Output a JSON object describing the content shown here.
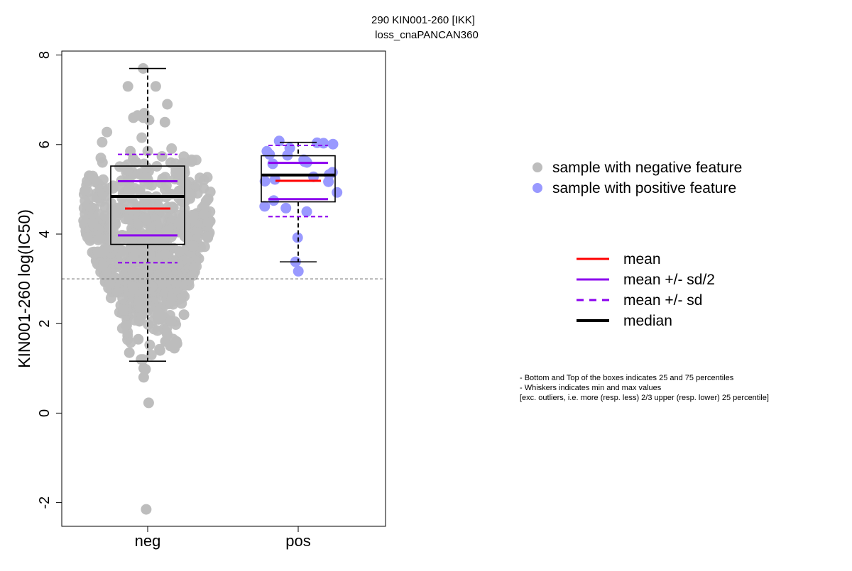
{
  "chart_data": {
    "type": "boxplot",
    "title_line1": "290 KIN001-260 [IKK]",
    "title_line2": "loss_cnaPANCAN360",
    "ylabel": "KIN001-260 log(IC50)",
    "xlabel": "",
    "ylim": [
      -2.6,
      8.1
    ],
    "y_ticks": [
      "-2",
      "0",
      "2",
      "4",
      "6",
      "8"
    ],
    "y_tick_values": [
      -2,
      0,
      2,
      4,
      6,
      8
    ],
    "categories": [
      "neg",
      "pos"
    ],
    "threshold_line": 3.0,
    "colors": {
      "neg_points": "#bdbdbd",
      "pos_points": "#9999ff",
      "mean": "#ff0000",
      "sd": "#8b00ee",
      "median": "#000000",
      "threshold": "#666666"
    },
    "groups": [
      {
        "name": "neg",
        "whisker_min": 1.16,
        "q1": 3.77,
        "median": 4.84,
        "q3": 5.52,
        "whisker_max": 7.7,
        "mean": 4.57,
        "mean_plus_half_sd": 5.18,
        "mean_minus_half_sd": 3.97,
        "mean_plus_sd": 5.78,
        "mean_minus_sd": 3.36,
        "n_points": 800,
        "range": [
          1.0,
          6.5
        ],
        "extra_points": [
          7.7,
          7.3,
          7.3,
          6.9,
          6.7,
          6.65,
          6.6,
          6.6,
          6.55,
          6.5,
          2.3,
          2.2,
          2.2,
          2.1,
          2.05,
          1.75,
          1.65,
          1.6,
          1.6,
          1.55,
          1.5,
          1.45,
          1.4,
          1.35,
          1.2,
          1.2,
          1.0,
          0.98,
          0.8,
          0.23,
          -2.15
        ]
      },
      {
        "name": "pos",
        "whisker_min": 3.38,
        "q1": 4.72,
        "median": 5.32,
        "q3": 5.75,
        "whisker_max": 6.05,
        "mean": 5.19,
        "mean_plus_half_sd": 5.59,
        "mean_minus_half_sd": 4.78,
        "mean_plus_sd": 5.98,
        "mean_minus_sd": 4.39,
        "points": [
          6.08,
          6.04,
          6.03,
          6.01,
          5.92,
          5.85,
          5.78,
          5.76,
          5.66,
          5.62,
          5.62,
          5.6,
          5.57,
          5.38,
          5.33,
          5.28,
          5.22,
          5.18,
          5.17,
          4.93,
          4.75,
          4.62,
          4.58,
          4.5,
          3.92,
          3.38,
          3.17
        ]
      }
    ],
    "legend_points": [
      {
        "label": "sample with negative feature",
        "color": "#bdbdbd"
      },
      {
        "label": "sample with positive feature",
        "color": "#9999ff"
      }
    ],
    "legend_lines": [
      {
        "label": "mean",
        "color": "#ff0000",
        "style": "solid",
        "weight": "normal"
      },
      {
        "label": "mean +/- sd/2",
        "color": "#8b00ee",
        "style": "solid",
        "weight": "normal"
      },
      {
        "label": "mean +/- sd",
        "color": "#8b00ee",
        "style": "dashed",
        "weight": "normal"
      },
      {
        "label": "median",
        "color": "#000000",
        "style": "solid",
        "weight": "bold"
      }
    ],
    "notes": [
      "- Bottom and Top of the boxes indicates 25 and 75 percentiles",
      "- Whiskers indicates min and max values",
      "[exc. outliers, i.e. more (resp. less) 2/3 upper (resp. lower) 25 percentile]"
    ]
  }
}
